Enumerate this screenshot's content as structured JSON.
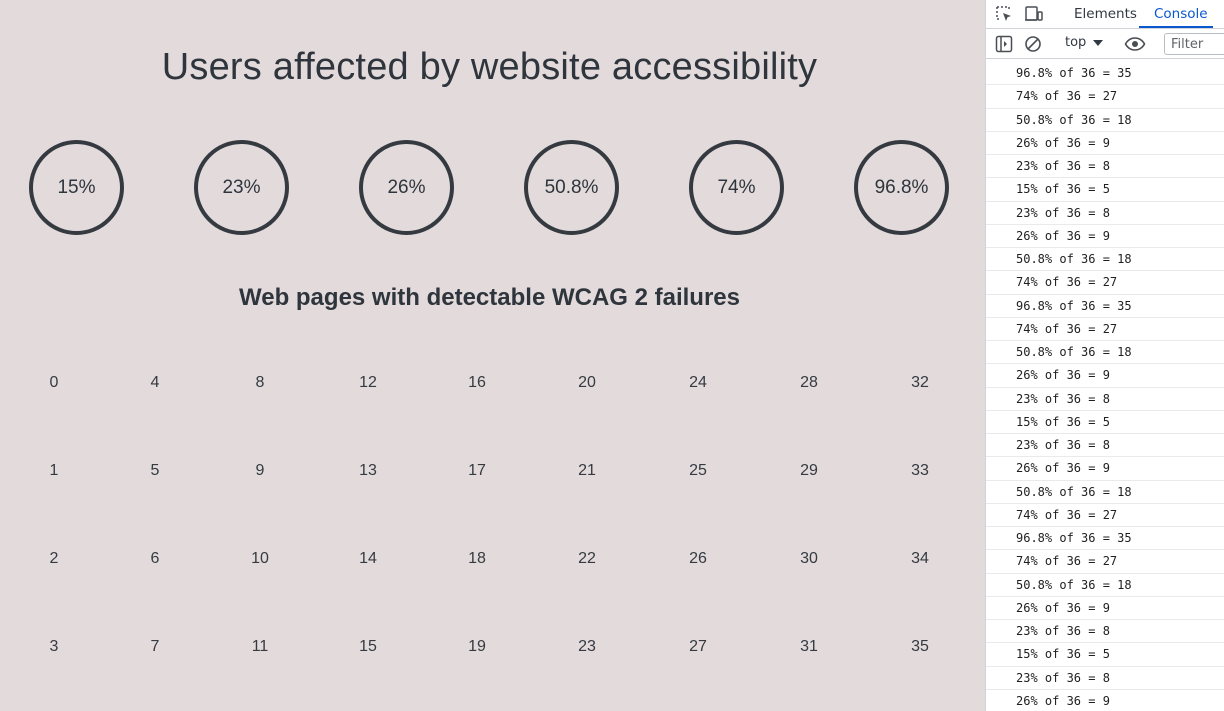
{
  "page": {
    "title": "Users affected by website accessibility",
    "subtitle": "Web pages with detectable WCAG 2 failures",
    "circles": [
      "15%",
      "23%",
      "26%",
      "50.8%",
      "74%",
      "96.8%"
    ],
    "number_grid": [
      [
        "0",
        "4",
        "8",
        "12",
        "16",
        "20",
        "24",
        "28",
        "32"
      ],
      [
        "1",
        "5",
        "9",
        "13",
        "17",
        "21",
        "25",
        "29",
        "33"
      ],
      [
        "2",
        "6",
        "10",
        "14",
        "18",
        "22",
        "26",
        "30",
        "34"
      ],
      [
        "3",
        "7",
        "11",
        "15",
        "19",
        "23",
        "27",
        "31",
        "35"
      ]
    ]
  },
  "devtools": {
    "tabs": {
      "elements": "Elements",
      "console": "Console"
    },
    "icons": {
      "inspect": "inspect-element-icon",
      "device": "device-toolbar-icon",
      "sidebar": "sidebar-toggle-icon",
      "clear": "clear-console-icon",
      "eye": "live-expression-icon"
    },
    "context": "top",
    "filter_placeholder": "Filter",
    "accent_color": "#0b57d0",
    "console_lines": [
      "96.8% of 36 = 35",
      "74% of 36 = 27",
      "50.8% of 36 = 18",
      "26% of 36 = 9",
      "23% of 36 = 8",
      "15% of 36 = 5",
      "23% of 36 = 8",
      "26% of 36 = 9",
      "50.8% of 36 = 18",
      "74% of 36 = 27",
      "96.8% of 36 = 35",
      "74% of 36 = 27",
      "50.8% of 36 = 18",
      "26% of 36 = 9",
      "23% of 36 = 8",
      "15% of 36 = 5",
      "23% of 36 = 8",
      "26% of 36 = 9",
      "50.8% of 36 = 18",
      "74% of 36 = 27",
      "96.8% of 36 = 35",
      "74% of 36 = 27",
      "50.8% of 36 = 18",
      "26% of 36 = 9",
      "23% of 36 = 8",
      "15% of 36 = 5",
      "23% of 36 = 8",
      "26% of 36 = 9"
    ]
  }
}
